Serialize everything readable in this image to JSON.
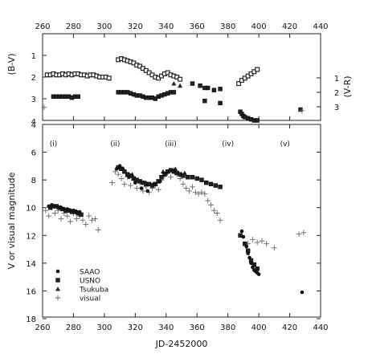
{
  "chart_data": [
    {
      "type": "scatter",
      "panel": "top",
      "xlim": [
        260,
        440
      ],
      "x_ticks": [
        "260",
        "280",
        "300",
        "320",
        "340",
        "360",
        "380",
        "400",
        "420",
        "440"
      ],
      "ylabel": "(B-V)",
      "ylim_left": [
        4,
        0
      ],
      "y_ticks_left": [
        "1",
        "2",
        "3"
      ],
      "ylabel_right": "(V-R)",
      "y_ticks_right": [
        "1",
        "2",
        "3"
      ],
      "series": [
        {
          "marker": "square-open",
          "points": [
            [
              263,
              1.9
            ],
            [
              265,
              1.9
            ],
            [
              267,
              1.85
            ],
            [
              269,
              1.9
            ],
            [
              271,
              1.9
            ],
            [
              273,
              1.85
            ],
            [
              275,
              1.9
            ],
            [
              277,
              1.85
            ],
            [
              279,
              1.9
            ],
            [
              281,
              1.85
            ],
            [
              283,
              1.85
            ],
            [
              285,
              1.9
            ],
            [
              287,
              1.9
            ],
            [
              289,
              1.95
            ],
            [
              291,
              1.9
            ],
            [
              293,
              1.9
            ],
            [
              295,
              1.95
            ],
            [
              297,
              2.0
            ],
            [
              299,
              2.0
            ],
            [
              301,
              2.0
            ],
            [
              303,
              2.05
            ],
            [
              309,
              1.2
            ],
            [
              311,
              1.15
            ],
            [
              313,
              1.2
            ],
            [
              315,
              1.25
            ],
            [
              317,
              1.3
            ],
            [
              319,
              1.35
            ],
            [
              321,
              1.45
            ],
            [
              323,
              1.5
            ],
            [
              325,
              1.6
            ],
            [
              327,
              1.7
            ],
            [
              329,
              1.8
            ],
            [
              331,
              1.9
            ],
            [
              333,
              2.0
            ],
            [
              335,
              2.05
            ],
            [
              337,
              1.95
            ],
            [
              339,
              1.85
            ],
            [
              341,
              1.8
            ],
            [
              343,
              1.9
            ],
            [
              345,
              1.95
            ],
            [
              347,
              2.0
            ],
            [
              349,
              2.1
            ],
            [
              387,
              2.3
            ],
            [
              389,
              2.15
            ],
            [
              391,
              2.05
            ],
            [
              393,
              1.95
            ],
            [
              395,
              1.85
            ],
            [
              397,
              1.75
            ],
            [
              399,
              1.65
            ]
          ]
        },
        {
          "marker": "square-filled",
          "points": [
            [
              267,
              2.9
            ],
            [
              269,
              2.9
            ],
            [
              271,
              2.9
            ],
            [
              273,
              2.9
            ],
            [
              275,
              2.9
            ],
            [
              277,
              2.9
            ],
            [
              279,
              2.95
            ],
            [
              281,
              2.9
            ],
            [
              283,
              2.9
            ],
            [
              309,
              2.7
            ],
            [
              311,
              2.7
            ],
            [
              313,
              2.7
            ],
            [
              315,
              2.7
            ],
            [
              317,
              2.75
            ],
            [
              319,
              2.8
            ],
            [
              321,
              2.85
            ],
            [
              323,
              2.85
            ],
            [
              325,
              2.9
            ],
            [
              327,
              2.95
            ],
            [
              329,
              2.95
            ],
            [
              331,
              2.95
            ],
            [
              333,
              3.0
            ],
            [
              335,
              2.9
            ],
            [
              337,
              2.85
            ],
            [
              339,
              2.8
            ],
            [
              341,
              2.75
            ],
            [
              343,
              2.7
            ],
            [
              345,
              2.7
            ],
            [
              357,
              2.3
            ],
            [
              362,
              2.4
            ],
            [
              365,
              2.5
            ],
            [
              365,
              3.1
            ],
            [
              367,
              2.5
            ],
            [
              371,
              2.6
            ],
            [
              375,
              2.55
            ],
            [
              375,
              3.2
            ],
            [
              388,
              3.6
            ],
            [
              389,
              3.7
            ],
            [
              390,
              3.8
            ],
            [
              391,
              3.85
            ],
            [
              393,
              3.9
            ],
            [
              395,
              3.95
            ],
            [
              397,
              4.0
            ],
            [
              399,
              4.0
            ],
            [
              427,
              3.5
            ]
          ]
        },
        {
          "marker": "triangle",
          "points": [
            [
              345,
              2.3
            ],
            [
              349,
              2.4
            ]
          ]
        },
        {
          "marker": "cross",
          "points": [
            [
              261,
              3.4
            ],
            [
              428,
              3.55
            ]
          ]
        }
      ]
    },
    {
      "type": "scatter",
      "panel": "bottom",
      "xlabel": "JD-2452000",
      "xlim": [
        260,
        440
      ],
      "x_ticks": [
        "260",
        "280",
        "300",
        "320",
        "340",
        "360",
        "380",
        "400",
        "420",
        "440"
      ],
      "ylabel": "V or visual magnitude",
      "ylim": [
        18,
        4
      ],
      "y_ticks": [
        "4",
        "6",
        "8",
        "10",
        "12",
        "14",
        "16",
        "18"
      ],
      "phases": [
        {
          "label": "(i)",
          "x": 267
        },
        {
          "label": "(ii)",
          "x": 307
        },
        {
          "label": "(iii)",
          "x": 343
        },
        {
          "label": "(iv)",
          "x": 380
        },
        {
          "label": "(v)",
          "x": 417
        }
      ],
      "legend": {
        "placement": "bottom-left",
        "entries": [
          {
            "label": "SAAO",
            "marker": "circle"
          },
          {
            "label": "USNO",
            "marker": "square"
          },
          {
            "label": "Tsukuba",
            "marker": "triangle"
          },
          {
            "label": "visual",
            "marker": "cross"
          }
        ]
      },
      "series": [
        {
          "name": "SAAO",
          "marker": "circle",
          "points": [
            [
              264,
              9.9
            ],
            [
              266,
              9.8
            ],
            [
              268,
              9.9
            ],
            [
              270,
              10.0
            ],
            [
              272,
              10.0
            ],
            [
              274,
              10.1
            ],
            [
              276,
              10.1
            ],
            [
              278,
              10.2
            ],
            [
              280,
              10.2
            ],
            [
              282,
              10.3
            ],
            [
              284,
              10.3
            ],
            [
              308,
              7.2
            ],
            [
              310,
              7.0
            ],
            [
              312,
              7.2
            ],
            [
              316,
              7.8
            ],
            [
              320,
              8.2
            ],
            [
              324,
              8.6
            ],
            [
              328,
              8.8
            ],
            [
              332,
              8.3
            ],
            [
              336,
              8.1
            ],
            [
              340,
              7.5
            ],
            [
              344,
              7.3
            ],
            [
              389,
              11.7
            ],
            [
              390,
              12.1
            ],
            [
              392,
              12.8
            ],
            [
              393,
              13.3
            ],
            [
              394,
              13.6
            ],
            [
              395,
              14.0
            ],
            [
              396,
              14.3
            ],
            [
              397,
              14.5
            ],
            [
              398,
              14.6
            ],
            [
              399,
              14.7
            ],
            [
              400,
              14.8
            ],
            [
              428,
              16.1
            ]
          ]
        },
        {
          "name": "USNO",
          "marker": "square",
          "points": [
            [
              265,
              10.0
            ],
            [
              267,
              9.9
            ],
            [
              269,
              9.9
            ],
            [
              271,
              10.0
            ],
            [
              273,
              10.1
            ],
            [
              275,
              10.2
            ],
            [
              277,
              10.2
            ],
            [
              279,
              10.3
            ],
            [
              281,
              10.3
            ],
            [
              283,
              10.4
            ],
            [
              285,
              10.5
            ],
            [
              309,
              7.1
            ],
            [
              311,
              7.2
            ],
            [
              313,
              7.4
            ],
            [
              315,
              7.6
            ],
            [
              317,
              7.7
            ],
            [
              319,
              7.9
            ],
            [
              321,
              8.0
            ],
            [
              323,
              8.1
            ],
            [
              325,
              8.2
            ],
            [
              327,
              8.3
            ],
            [
              329,
              8.3
            ],
            [
              331,
              8.4
            ],
            [
              333,
              8.3
            ],
            [
              335,
              8.1
            ],
            [
              337,
              7.8
            ],
            [
              339,
              7.6
            ],
            [
              341,
              7.4
            ],
            [
              343,
              7.3
            ],
            [
              345,
              7.4
            ],
            [
              347,
              7.5
            ],
            [
              349,
              7.6
            ],
            [
              351,
              7.7
            ],
            [
              354,
              7.8
            ],
            [
              357,
              7.8
            ],
            [
              360,
              7.9
            ],
            [
              363,
              8.0
            ],
            [
              366,
              8.2
            ],
            [
              369,
              8.3
            ],
            [
              372,
              8.4
            ],
            [
              375,
              8.5
            ],
            [
              388,
              12.0
            ],
            [
              391,
              12.6
            ],
            [
              393,
              13.1
            ],
            [
              395,
              13.8
            ],
            [
              397,
              14.1
            ],
            [
              399,
              14.4
            ]
          ]
        },
        {
          "name": "Tsukuba",
          "marker": "triangle",
          "points": [
            [
              310,
              7.0
            ],
            [
              318,
              7.6
            ],
            [
              327,
              8.2
            ],
            [
              338,
              7.4
            ],
            [
              346,
              7.2
            ],
            [
              352,
              7.5
            ]
          ]
        },
        {
          "name": "visual",
          "marker": "cross",
          "points": [
            [
              262,
              10.2
            ],
            [
              264,
              10.6
            ],
            [
              266,
              10.0
            ],
            [
              268,
              10.4
            ],
            [
              270,
              10.2
            ],
            [
              272,
              10.8
            ],
            [
              274,
              10.4
            ],
            [
              276,
              10.6
            ],
            [
              278,
              11.0
            ],
            [
              280,
              10.4
            ],
            [
              282,
              10.8
            ],
            [
              284,
              10.6
            ],
            [
              286,
              10.9
            ],
            [
              288,
              11.2
            ],
            [
              290,
              10.6
            ],
            [
              292,
              10.9
            ],
            [
              294,
              10.8
            ],
            [
              296,
              11.6
            ],
            [
              305,
              8.2
            ],
            [
              307,
              7.4
            ],
            [
              309,
              7.6
            ],
            [
              311,
              7.9
            ],
            [
              313,
              8.3
            ],
            [
              315,
              7.8
            ],
            [
              317,
              8.4
            ],
            [
              319,
              8.0
            ],
            [
              321,
              8.6
            ],
            [
              323,
              8.2
            ],
            [
              325,
              8.8
            ],
            [
              327,
              8.5
            ],
            [
              329,
              8.9
            ],
            [
              331,
              8.6
            ],
            [
              333,
              8.4
            ],
            [
              335,
              8.7
            ],
            [
              337,
              8.0
            ],
            [
              339,
              7.7
            ],
            [
              341,
              7.5
            ],
            [
              343,
              7.8
            ],
            [
              345,
              7.3
            ],
            [
              347,
              7.6
            ],
            [
              349,
              7.9
            ],
            [
              351,
              8.3
            ],
            [
              353,
              8.6
            ],
            [
              355,
              8.8
            ],
            [
              357,
              8.5
            ],
            [
              359,
              8.9
            ],
            [
              361,
              9.0
            ],
            [
              363,
              8.9
            ],
            [
              365,
              9.0
            ],
            [
              367,
              9.5
            ],
            [
              369,
              9.8
            ],
            [
              371,
              10.2
            ],
            [
              373,
              10.4
            ],
            [
              375,
              10.9
            ],
            [
              393,
              12.6
            ],
            [
              396,
              12.3
            ],
            [
              399,
              12.5
            ],
            [
              402,
              12.4
            ],
            [
              405,
              12.6
            ],
            [
              410,
              12.9
            ],
            [
              426,
              11.9
            ],
            [
              429,
              11.8
            ]
          ]
        }
      ]
    }
  ]
}
